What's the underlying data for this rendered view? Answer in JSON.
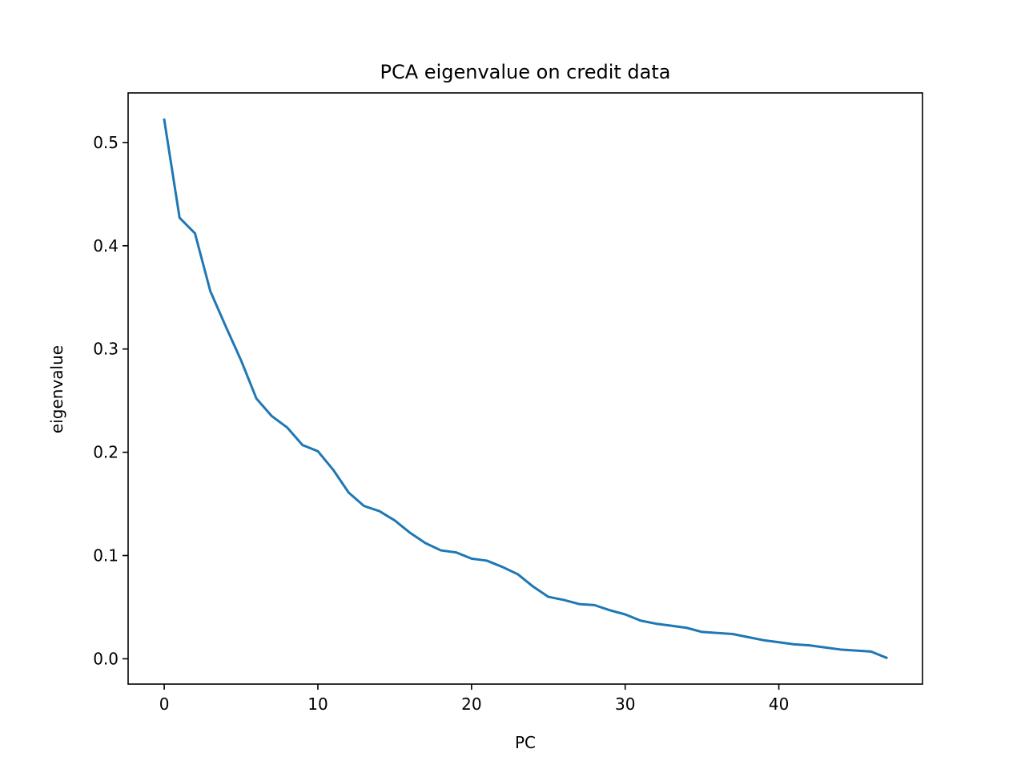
{
  "chart_data": {
    "type": "line",
    "title": "PCA eigenvalue on credit data",
    "xlabel": "PC",
    "ylabel": "eigenvalue",
    "xlim": [
      -2.35,
      49.35
    ],
    "ylim": [
      -0.0245,
      0.548
    ],
    "xticks": [
      0,
      10,
      20,
      30,
      40
    ],
    "xtick_labels": [
      "0",
      "10",
      "20",
      "30",
      "40"
    ],
    "yticks": [
      0.0,
      0.1,
      0.2,
      0.3,
      0.4,
      0.5
    ],
    "ytick_labels": [
      "0.0",
      "0.1",
      "0.2",
      "0.3",
      "0.4",
      "0.5"
    ],
    "grid": false,
    "line_color": "#1f77b4",
    "series": [
      {
        "x": [
          0,
          1,
          2,
          3,
          4,
          5,
          6,
          7,
          8,
          9,
          10,
          11,
          12,
          13,
          14,
          15,
          16,
          17,
          18,
          19,
          20,
          21,
          22,
          23,
          24,
          25,
          26,
          27,
          28,
          29,
          30,
          31,
          32,
          33,
          34,
          35,
          36,
          37,
          38,
          39,
          40,
          41,
          42,
          43,
          44,
          45,
          46,
          47
        ],
        "values": [
          0.522,
          0.427,
          0.412,
          0.356,
          0.322,
          0.289,
          0.252,
          0.235,
          0.224,
          0.207,
          0.201,
          0.183,
          0.161,
          0.148,
          0.143,
          0.134,
          0.122,
          0.112,
          0.105,
          0.103,
          0.097,
          0.095,
          0.089,
          0.082,
          0.07,
          0.06,
          0.057,
          0.053,
          0.052,
          0.047,
          0.043,
          0.037,
          0.034,
          0.032,
          0.03,
          0.026,
          0.025,
          0.024,
          0.021,
          0.018,
          0.016,
          0.014,
          0.013,
          0.011,
          0.009,
          0.008,
          0.007,
          0.001
        ]
      }
    ]
  }
}
